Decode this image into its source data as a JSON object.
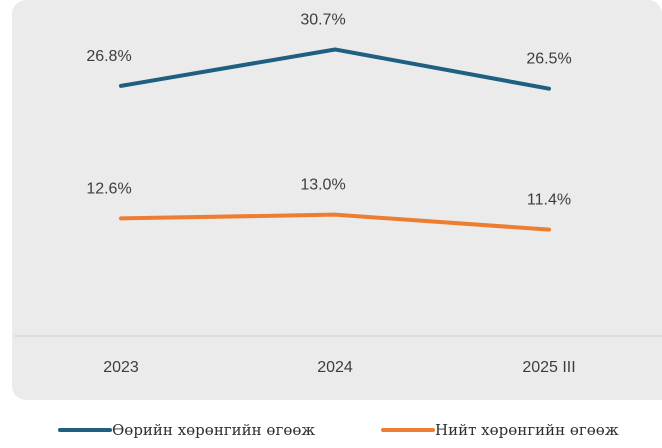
{
  "chart_data": {
    "type": "line",
    "categories": [
      "2023",
      "2024",
      "2025 III"
    ],
    "series": [
      {
        "name": "Өөрийн хөрөнгийн өгөөж",
        "values": [
          26.8,
          30.7,
          26.5
        ],
        "labels": [
          "26.8%",
          "30.7%",
          "26.5%"
        ],
        "color": "#1f5f80"
      },
      {
        "name": "Нийт хөрөнгийн өгөөж",
        "values": [
          12.6,
          13.0,
          11.4
        ],
        "labels": [
          "12.6%",
          "13.0%",
          "11.4%"
        ],
        "color": "#ed7d31"
      }
    ],
    "ylim": [
      0,
      36
    ],
    "grid": false,
    "legend_position": "bottom",
    "background": "#ebebeb",
    "axis_color": "#d9d9d9"
  }
}
